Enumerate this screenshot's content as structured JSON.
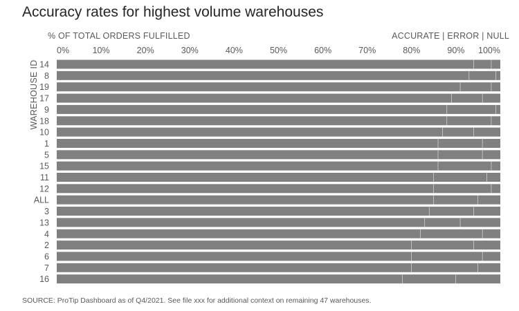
{
  "colors": {
    "bar": "#808080",
    "separator": "#ffffff",
    "text": "#595959",
    "title": "#262626"
  },
  "chart_data": {
    "type": "bar",
    "orientation": "horizontal",
    "stacked": true,
    "title": "Accuracy rates for highest volume warehouses",
    "xlabel": "% OF TOTAL ORDERS FULFILLED",
    "ylabel": "WAREHOUSE ID",
    "legend_text": "ACCURATE | ERROR | NULL",
    "legend_position": "top-right",
    "xlim": [
      0,
      100
    ],
    "x_ticks": [
      "0%",
      "10%",
      "20%",
      "30%",
      "40%",
      "50%",
      "60%",
      "70%",
      "80%",
      "90%",
      "100%"
    ],
    "categories": [
      "14",
      "8",
      "19",
      "17",
      "9",
      "18",
      "10",
      "1",
      "5",
      "15",
      "11",
      "12",
      "ALL",
      "3",
      "13",
      "4",
      "2",
      "6",
      "7",
      "16"
    ],
    "series": [
      {
        "name": "ACCURATE",
        "values": [
          94,
          93,
          91,
          89,
          88,
          88,
          87,
          86,
          86,
          86,
          85,
          85,
          85,
          84,
          83,
          82,
          80,
          80,
          80,
          78
        ]
      },
      {
        "name": "ERROR",
        "values": [
          4,
          6,
          7,
          7,
          11,
          10,
          7,
          10,
          10,
          12,
          12,
          13,
          10,
          10,
          8,
          14,
          14,
          16,
          15,
          12
        ]
      },
      {
        "name": "NULL",
        "values": [
          2,
          1,
          2,
          4,
          1,
          2,
          6,
          4,
          4,
          2,
          3,
          2,
          5,
          6,
          9,
          4,
          6,
          4,
          5,
          10
        ]
      }
    ],
    "grid": false,
    "source": "SOURCE: ProTip Dashboard as of Q4/2021. See file xxx for additional context on remaining 47 warehouses."
  }
}
